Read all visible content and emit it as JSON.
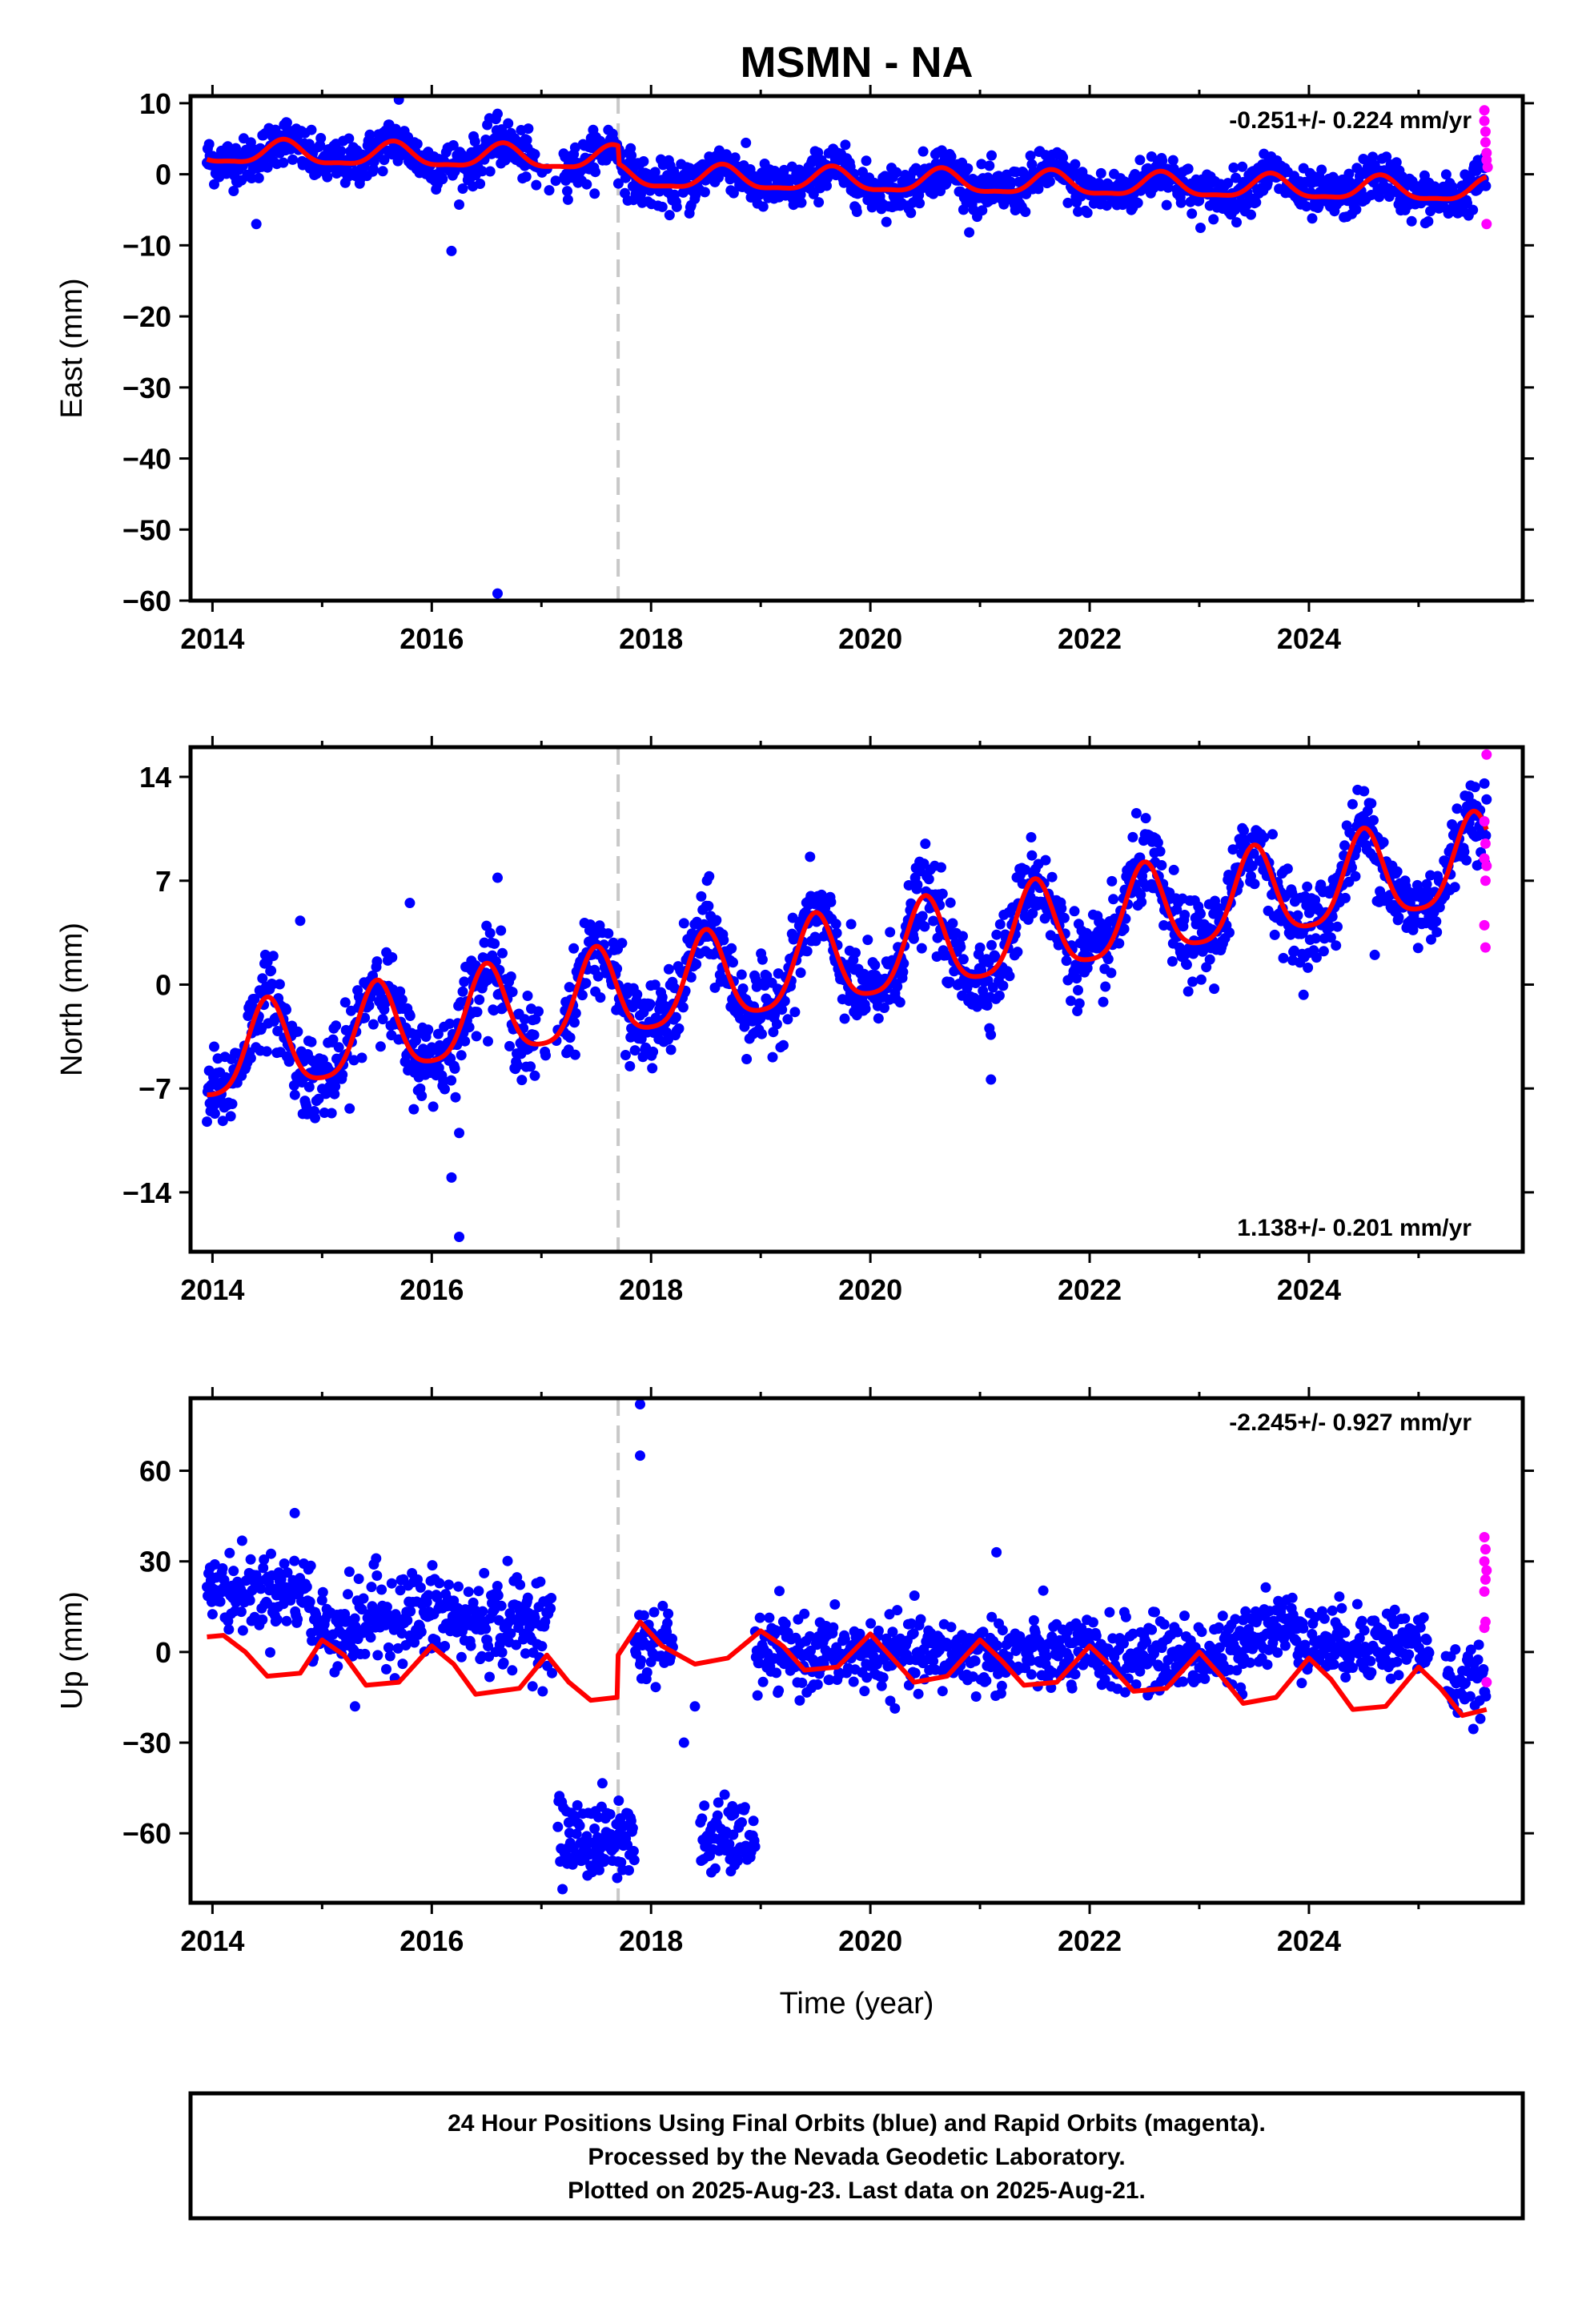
{
  "title": "MSMN - NA",
  "caption": {
    "lines": [
      "24 Hour Positions Using Final Orbits (blue) and Rapid Orbits (magenta).",
      "Processed by the Nevada Geodetic Laboratory.",
      "Plotted on 2025-Aug-23. Last data on 2025-Aug-21."
    ]
  },
  "colors": {
    "final_orbits": "#0000ff",
    "rapid_orbits": "#ff00ff",
    "model_fit": "#ff0000",
    "equipment_change_line": "#c8c8c8"
  },
  "chart_data": [
    {
      "type": "scatter",
      "component": "east",
      "title": "",
      "xlabel": "",
      "ylabel": "East (mm)",
      "xlim": [
        2013.8,
        2025.95
      ],
      "ylim": [
        -60,
        11
      ],
      "xticks": [
        2014,
        2016,
        2018,
        2020,
        2022,
        2024
      ],
      "yticks": [
        10,
        0,
        -10,
        -20,
        -30,
        -40,
        -50,
        -60
      ],
      "grid": false,
      "rate_label": "-0.251+/- 0.224 mm/yr",
      "rate_position": "top-right",
      "equipment_change": 2017.7,
      "data_span": [
        2013.95,
        2025.62
      ],
      "rapid_span": [
        2025.58,
        2025.64
      ],
      "series": [
        {
          "name": "Final Orbits",
          "color": "blue",
          "model": {
            "offset": 3.0,
            "trend": -0.251,
            "t0": 2014.0,
            "annual_amp": 1.6,
            "annual_phase": 2014.65,
            "semiannual_amp": 0.5,
            "steps": [
              {
                "t": 2017.7,
                "value": -2.5
              }
            ],
            "scatter": 1.6
          },
          "outliers": [
            {
              "x": 2016.6,
              "y": -59
            },
            {
              "x": 2016.18,
              "y": -10.8
            },
            {
              "x": 2015.7,
              "y": 10.5
            },
            {
              "x": 2014.4,
              "y": -7
            },
            {
              "x": 2018.35,
              "y": -5.5
            },
            {
              "x": 2016.6,
              "y": 8.5
            }
          ]
        },
        {
          "name": "Rapid Orbits",
          "color": "magenta",
          "points": [
            {
              "x": 2025.6,
              "y": 9
            },
            {
              "x": 2025.6,
              "y": 7.5
            },
            {
              "x": 2025.61,
              "y": 6
            },
            {
              "x": 2025.61,
              "y": 4.5
            },
            {
              "x": 2025.62,
              "y": 3
            },
            {
              "x": 2025.62,
              "y": 2
            },
            {
              "x": 2025.63,
              "y": 1
            },
            {
              "x": 2025.62,
              "y": -7
            }
          ]
        }
      ]
    },
    {
      "type": "scatter",
      "component": "north",
      "title": "",
      "xlabel": "",
      "ylabel": "North (mm)",
      "xlim": [
        2013.8,
        2025.95
      ],
      "ylim": [
        -18,
        16
      ],
      "xticks": [
        2014,
        2016,
        2018,
        2020,
        2022,
        2024
      ],
      "yticks": [
        14,
        7,
        0,
        -7,
        -14
      ],
      "grid": false,
      "rate_label": "1.138+/- 0.201 mm/yr",
      "rate_position": "bottom-right",
      "equipment_change": 2017.7,
      "data_span": [
        2013.95,
        2025.62
      ],
      "rapid_span": [
        2025.58,
        2025.64
      ],
      "series": [
        {
          "name": "Final Orbits",
          "color": "blue",
          "model": {
            "offset": -5.0,
            "trend": 1.138,
            "t0": 2014.0,
            "annual_amp": 3.0,
            "annual_phase": 2014.5,
            "semiannual_amp": 0.6,
            "steps": [],
            "scatter": 1.4
          },
          "outliers": [
            {
              "x": 2016.25,
              "y": -17
            },
            {
              "x": 2016.18,
              "y": -13
            },
            {
              "x": 2016.25,
              "y": -10
            },
            {
              "x": 2015.8,
              "y": 5.5
            },
            {
              "x": 2016.6,
              "y": 7.2
            },
            {
              "x": 2014.8,
              "y": 4.3
            },
            {
              "x": 2021.1,
              "y": -6.4
            },
            {
              "x": 2024.6,
              "y": 2
            }
          ]
        },
        {
          "name": "Rapid Orbits",
          "color": "magenta",
          "points": [
            {
              "x": 2025.62,
              "y": 15.5
            },
            {
              "x": 2025.6,
              "y": 11
            },
            {
              "x": 2025.61,
              "y": 9.5
            },
            {
              "x": 2025.6,
              "y": 8.5
            },
            {
              "x": 2025.62,
              "y": 8
            },
            {
              "x": 2025.61,
              "y": 7
            },
            {
              "x": 2025.6,
              "y": 4
            },
            {
              "x": 2025.61,
              "y": 2.5
            }
          ]
        }
      ]
    },
    {
      "type": "scatter",
      "component": "up",
      "title": "",
      "xlabel": "Time (year)",
      "ylabel": "Up (mm)",
      "xlim": [
        2013.8,
        2025.95
      ],
      "ylim": [
        -83,
        84
      ],
      "xticks": [
        2014,
        2016,
        2018,
        2020,
        2022,
        2024
      ],
      "yticks": [
        60,
        30,
        0,
        -30,
        -60
      ],
      "grid": false,
      "rate_label": "-2.245+/- 0.927 mm/yr",
      "rate_position": "top-right",
      "equipment_change": 2017.7,
      "data_span": [
        2013.95,
        2025.62
      ],
      "rapid_span": [
        2025.58,
        2025.64
      ],
      "series": [
        {
          "name": "Final Orbits",
          "color": "blue",
          "segments": [
            {
              "from": 2013.95,
              "to": 2014.9,
              "mean": 20,
              "spread": 7
            },
            {
              "from": 2014.9,
              "to": 2015.4,
              "mean": 8,
              "spread": 8
            },
            {
              "from": 2015.4,
              "to": 2016.2,
              "mean": 12,
              "spread": 9
            },
            {
              "from": 2016.2,
              "to": 2017.1,
              "mean": 10,
              "spread": 9
            },
            {
              "from": 2017.15,
              "to": 2017.85,
              "mean": -62,
              "spread": 8
            },
            {
              "from": 2017.85,
              "to": 2018.2,
              "mean": 3,
              "spread": 7
            },
            {
              "from": 2018.45,
              "to": 2018.95,
              "mean": -62,
              "spread": 7
            },
            {
              "from": 2018.95,
              "to": 2023.4,
              "mean": -1,
              "spread": 7
            },
            {
              "from": 2023.4,
              "to": 2023.95,
              "mean": 8,
              "spread": 7
            },
            {
              "from": 2023.95,
              "to": 2025.1,
              "mean": 3,
              "spread": 7
            },
            {
              "from": 2025.25,
              "to": 2025.62,
              "mean": -10,
              "spread": 6
            }
          ],
          "outliers": [
            {
              "x": 2017.9,
              "y": 82
            },
            {
              "x": 2017.9,
              "y": 65
            },
            {
              "x": 2021.15,
              "y": 33
            },
            {
              "x": 2014.75,
              "y": 46
            },
            {
              "x": 2018.4,
              "y": -18
            },
            {
              "x": 2018.3,
              "y": -30
            },
            {
              "x": 2015.3,
              "y": -18
            }
          ]
        },
        {
          "name": "Rapid Orbits",
          "color": "magenta",
          "points": [
            {
              "x": 2025.6,
              "y": 38
            },
            {
              "x": 2025.61,
              "y": 34
            },
            {
              "x": 2025.6,
              "y": 30
            },
            {
              "x": 2025.62,
              "y": 27
            },
            {
              "x": 2025.61,
              "y": 24
            },
            {
              "x": 2025.6,
              "y": 20
            },
            {
              "x": 2025.61,
              "y": 10
            },
            {
              "x": 2025.6,
              "y": 8
            },
            {
              "x": 2025.62,
              "y": -10
            }
          ]
        }
      ],
      "model_curve": [
        [
          2013.95,
          5
        ],
        [
          2014.1,
          5.5
        ],
        [
          2014.3,
          0
        ],
        [
          2014.5,
          -8
        ],
        [
          2014.8,
          -7
        ],
        [
          2015.0,
          4
        ],
        [
          2015.2,
          -1
        ],
        [
          2015.4,
          -11
        ],
        [
          2015.7,
          -10
        ],
        [
          2016.0,
          2
        ],
        [
          2016.2,
          -4
        ],
        [
          2016.4,
          -14
        ],
        [
          2016.8,
          -12
        ],
        [
          2017.05,
          -1
        ],
        [
          2017.25,
          -10
        ],
        [
          2017.45,
          -16
        ],
        [
          2017.69,
          -15
        ],
        [
          2017.7,
          -1
        ],
        [
          2017.9,
          10
        ],
        [
          2018.1,
          2
        ],
        [
          2018.4,
          -4
        ],
        [
          2018.7,
          -2
        ],
        [
          2019.0,
          7
        ],
        [
          2019.2,
          2
        ],
        [
          2019.4,
          -6
        ],
        [
          2019.7,
          -5
        ],
        [
          2020.0,
          6
        ],
        [
          2020.2,
          -2
        ],
        [
          2020.4,
          -10
        ],
        [
          2020.7,
          -8
        ],
        [
          2021.0,
          4
        ],
        [
          2021.2,
          -3
        ],
        [
          2021.4,
          -11
        ],
        [
          2021.7,
          -10
        ],
        [
          2022.0,
          2
        ],
        [
          2022.2,
          -5
        ],
        [
          2022.4,
          -13
        ],
        [
          2022.7,
          -12
        ],
        [
          2023.0,
          0
        ],
        [
          2023.2,
          -8
        ],
        [
          2023.4,
          -17
        ],
        [
          2023.7,
          -15
        ],
        [
          2024.0,
          -2
        ],
        [
          2024.2,
          -9
        ],
        [
          2024.4,
          -19
        ],
        [
          2024.7,
          -18
        ],
        [
          2025.0,
          -5
        ],
        [
          2025.2,
          -12
        ],
        [
          2025.4,
          -21
        ],
        [
          2025.62,
          -19
        ]
      ]
    }
  ]
}
